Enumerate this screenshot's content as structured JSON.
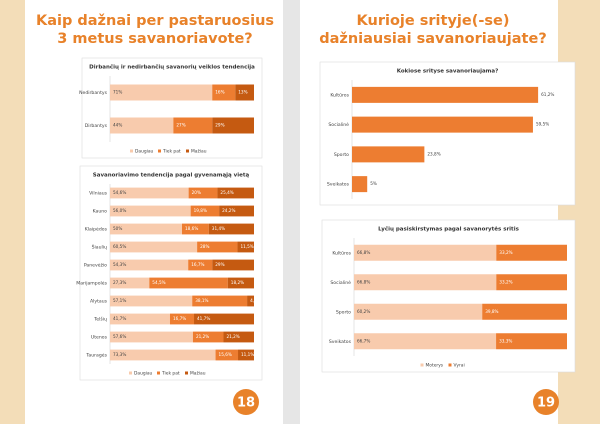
{
  "pages": [
    {
      "title": "Kaip dažnai per pastaruosius 3 metus savanoriavote?",
      "page_number": 18
    },
    {
      "title": "Kurioje srityje(-se) dažniausiai savanoriaujate?",
      "page_number": 19
    }
  ],
  "chart_data": [
    {
      "type": "bar",
      "orientation": "horizontal",
      "stacked": true,
      "title": "Dirbančių ir nedirbančių savanorių veiklos tendencija",
      "categories": [
        "Nedirbantys",
        "Dirbantys"
      ],
      "series": [
        {
          "name": "Daugiau",
          "color": "#f8cbad",
          "values": [
            71,
            44
          ],
          "value_labels": [
            "71%",
            "44%"
          ]
        },
        {
          "name": "Tiek pat",
          "color": "#ed7d31",
          "values": [
            16,
            27
          ],
          "value_labels": [
            "16%",
            "27%"
          ]
        },
        {
          "name": "Mažiau",
          "color": "#c55a11",
          "values": [
            13,
            29
          ],
          "value_labels": [
            "13%",
            "29%"
          ]
        }
      ],
      "legend": "bottom"
    },
    {
      "type": "bar",
      "orientation": "horizontal",
      "stacked": true,
      "title": "Savanoriavimo tendencija pagal gyvenamąją vietą",
      "categories": [
        "Vilniaus",
        "Kauno",
        "Klaipėdos",
        "Šiaulių",
        "Panevėžio",
        "Marijampolės",
        "Alytaus",
        "Telšių",
        "Utenos",
        "Tauragės"
      ],
      "series": [
        {
          "name": "Daugiau",
          "color": "#f8cbad",
          "values": [
            54.6,
            56,
            50,
            60.5,
            54.3,
            27.3,
            57.1,
            41.7,
            57.6,
            73.3
          ],
          "value_labels": [
            "54,6%",
            "56,0%",
            "50%",
            "60,5%",
            "54,3%",
            "27,3%",
            "57,1%",
            "41,7%",
            "57,6%",
            "73,3%"
          ]
        },
        {
          "name": "Tiek pat",
          "color": "#ed7d31",
          "values": [
            20,
            19.8,
            18.6,
            28,
            16.7,
            54.5,
            38.1,
            16.7,
            21.2,
            15.6
          ],
          "value_labels": [
            "20%",
            "19,8%",
            "18,6%",
            "28%",
            "16,7%",
            "54,5%",
            "38,1%",
            "16,7%",
            "21,2%",
            "15,6%"
          ]
        },
        {
          "name": "Mažiau",
          "color": "#c55a11",
          "values": [
            25.4,
            24.2,
            31.4,
            11.5,
            29,
            18.2,
            4.8,
            41.7,
            21.2,
            11.1
          ],
          "value_labels": [
            "25,4%",
            "24,2%",
            "31,4%",
            "11,5%",
            "29%",
            "18,2%",
            "4,8%",
            "41,7%",
            "21,2%",
            "11,1%"
          ]
        }
      ],
      "legend": "bottom"
    },
    {
      "type": "bar",
      "orientation": "horizontal",
      "stacked": false,
      "title": "Kokiose srityse savanoriaujama?",
      "categories": [
        "Kultūros",
        "Socialinė",
        "Sporto",
        "Sveikatos"
      ],
      "series": [
        {
          "color": "#ed7d31",
          "values": [
            61.2,
            59.5,
            23.8,
            5
          ],
          "value_labels": [
            "61,2%",
            "59,5%",
            "23,8%",
            "5%"
          ]
        }
      ]
    },
    {
      "type": "bar",
      "orientation": "horizontal",
      "stacked": true,
      "title": "Lyčių pasiskirstymas pagal savanorytės sritis",
      "categories": [
        "Kultūros",
        "Socialinė",
        "Sporto",
        "Sveikatos"
      ],
      "series": [
        {
          "name": "Moterys",
          "color": "#f8cbad",
          "values": [
            66.8,
            66.8,
            60.2,
            66.7
          ],
          "value_labels": [
            "66,8%",
            "66,8%",
            "60,2%",
            "66,7%"
          ]
        },
        {
          "name": "Vyrai",
          "color": "#ed7d31",
          "values": [
            33.2,
            33.2,
            39.8,
            33.3
          ],
          "value_labels": [
            "33,2%",
            "33,2%",
            "39,8%",
            "33,3%"
          ]
        }
      ],
      "legend": "bottom"
    }
  ]
}
